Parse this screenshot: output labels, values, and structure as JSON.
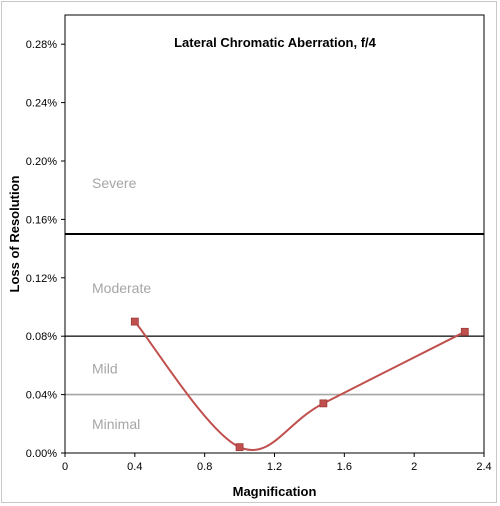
{
  "chart_data": {
    "type": "line",
    "title": "Lateral Chromatic Aberration, f/4",
    "xlabel": "Magnification",
    "ylabel": "Loss of Resolution",
    "xlim": [
      0,
      2.4
    ],
    "ylim": [
      0,
      0.3
    ],
    "x_ticks": [
      "0",
      "0.4",
      "0.8",
      "1.2",
      "1.6",
      "2",
      "2.4"
    ],
    "y_ticks": [
      "0.00%",
      "0.04%",
      "0.08%",
      "0.12%",
      "0.16%",
      "0.20%",
      "0.24%",
      "0.28%"
    ],
    "grid": false,
    "series": [
      {
        "x": [
          0.4,
          1.0,
          1.48,
          2.29
        ],
        "y": [
          0.09,
          0.004,
          0.034,
          0.083
        ],
        "color": "#c0504d",
        "marker": "square",
        "smooth": true
      }
    ],
    "thresholds": [
      {
        "value": 0.15,
        "color": "#000000"
      },
      {
        "value": 0.08,
        "color": "#404040"
      },
      {
        "value": 0.04,
        "color": "#a6a6a6"
      }
    ],
    "zones": [
      {
        "label": "Severe",
        "y": 0.185
      },
      {
        "label": "Moderate",
        "y": 0.113
      },
      {
        "label": "Mild",
        "y": 0.058
      },
      {
        "label": "Minimal",
        "y": 0.02
      }
    ]
  }
}
